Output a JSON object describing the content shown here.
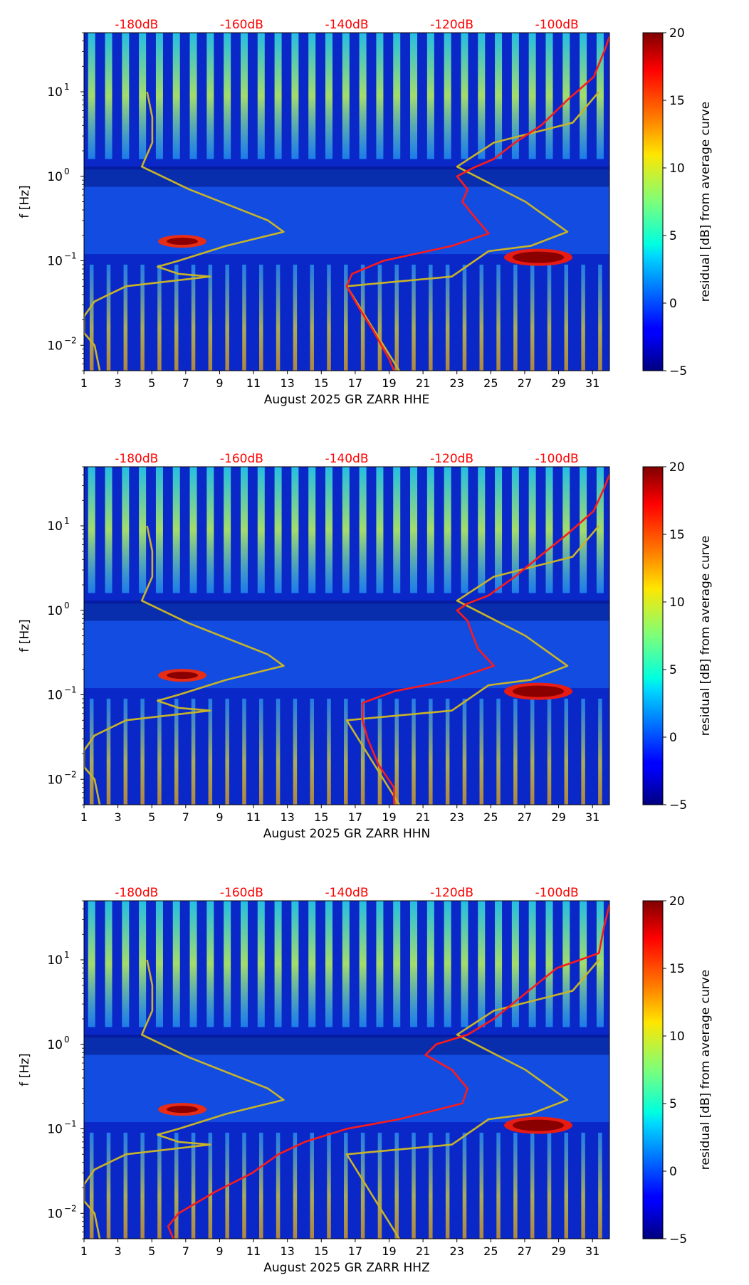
{
  "figure": {
    "xticks": [
      "1",
      "3",
      "5",
      "7",
      "9",
      "11",
      "13",
      "15",
      "17",
      "19",
      "21",
      "23",
      "25",
      "27",
      "29",
      "31"
    ],
    "yticks": [
      {
        "base": "10",
        "exp": "1",
        "value": 10
      },
      {
        "base": "10",
        "exp": "0",
        "value": 1
      },
      {
        "base": "10",
        "exp": "−1",
        "value": 0.1
      },
      {
        "base": "10",
        "exp": "−2",
        "value": 0.01
      }
    ],
    "ylabel": "f [Hz]",
    "db_scale": [
      "-180dB",
      "-160dB",
      "-140dB",
      "-120dB",
      "-100dB"
    ],
    "colorbar": {
      "label": "residual [dB] from average curve",
      "ticks": [
        "20",
        "15",
        "10",
        "5",
        "0",
        "−5"
      ],
      "range": [
        -5,
        20
      ],
      "colormap": "jet"
    },
    "colors": {
      "db_text": "#ff0000",
      "median_curve": "#ff1a1a",
      "reference_curve": "#c8b428"
    }
  },
  "chart_data": [
    {
      "type": "heatmap",
      "xlabel": "August 2025 GR ZARR  HHE",
      "ylabel": "f [Hz]",
      "xlim": [
        1,
        32
      ],
      "ylim": [
        0.005,
        50
      ],
      "yscale": "log",
      "top_axis": {
        "ticks": [
          "-180dB",
          "-160dB",
          "-140dB",
          "-120dB",
          "-100dB"
        ],
        "range_db": [
          -190,
          -90
        ]
      },
      "colorbar": {
        "label": "residual [dB] from average curve",
        "min": -5,
        "max": 20
      },
      "series": [
        {
          "color": "red",
          "points": [
            [
              -90,
              45
            ],
            [
              -91,
              30
            ],
            [
              -93,
              15
            ],
            [
              -98,
              8
            ],
            [
              -103,
              4
            ],
            [
              -108,
              2.5
            ],
            [
              -112,
              1.6
            ],
            [
              -116,
              1.25
            ],
            [
              -119,
              1.0
            ],
            [
              -117,
              0.7
            ],
            [
              -118,
              0.5
            ],
            [
              -116,
              0.35
            ],
            [
              -113,
              0.21
            ],
            [
              -120,
              0.15
            ],
            [
              -133,
              0.1
            ],
            [
              -139,
              0.07
            ],
            [
              -140,
              0.05
            ],
            [
              -138,
              0.03
            ],
            [
              -135,
              0.015
            ],
            [
              -132,
              0.007
            ],
            [
              -131,
              0.005
            ]
          ]
        },
        {
          "color": "olive",
          "points": [
            [
              -178,
              10
            ],
            [
              -177,
              5
            ],
            [
              -177,
              2.5
            ],
            [
              -179,
              1.3
            ],
            [
              -170,
              0.7
            ],
            [
              -155,
              0.3
            ],
            [
              -152,
              0.22
            ],
            [
              -163,
              0.15
            ],
            [
              -172,
              0.1
            ],
            [
              -176,
              0.085
            ],
            [
              -172,
              0.07
            ],
            [
              -166,
              0.065
            ],
            [
              -182,
              0.05
            ],
            [
              -188,
              0.033
            ],
            [
              -190,
              0.022
            ],
            [
              -190,
              0.014
            ],
            [
              -188,
              0.01
            ],
            [
              -187,
              0.005
            ]
          ]
        },
        {
          "color": "olive",
          "points": [
            [
              -92,
              10
            ],
            [
              -97,
              4.3
            ],
            [
              -112,
              2.5
            ],
            [
              -119,
              1.3
            ],
            [
              -106,
              0.5
            ],
            [
              -98,
              0.22
            ],
            [
              -105,
              0.15
            ],
            [
              -113,
              0.13
            ],
            [
              -120,
              0.065
            ],
            [
              -140,
              0.05
            ],
            [
              -130,
              0.005
            ]
          ]
        }
      ]
    },
    {
      "type": "heatmap",
      "xlabel": "August 2025 GR ZARR  HHN",
      "ylabel": "f [Hz]",
      "xlim": [
        1,
        32
      ],
      "ylim": [
        0.005,
        50
      ],
      "yscale": "log",
      "top_axis": {
        "ticks": [
          "-180dB",
          "-160dB",
          "-140dB",
          "-120dB",
          "-100dB"
        ],
        "range_db": [
          -190,
          -90
        ]
      },
      "colorbar": {
        "label": "residual [dB] from average curve",
        "min": -5,
        "max": 20
      },
      "series": [
        {
          "color": "red",
          "points": [
            [
              -90,
              40
            ],
            [
              -91,
              28
            ],
            [
              -93,
              15
            ],
            [
              -98,
              8
            ],
            [
              -103,
              4.5
            ],
            [
              -108,
              2.5
            ],
            [
              -113,
              1.5
            ],
            [
              -117,
              1.2
            ],
            [
              -119,
              1.0
            ],
            [
              -117,
              0.75
            ],
            [
              -116,
              0.5
            ],
            [
              -115,
              0.35
            ],
            [
              -112,
              0.22
            ],
            [
              -120,
              0.15
            ],
            [
              -131,
              0.11
            ],
            [
              -137,
              0.08
            ],
            [
              -137,
              0.05
            ],
            [
              -136,
              0.03
            ],
            [
              -134,
              0.015
            ],
            [
              -131,
              0.008
            ],
            [
              -131,
              0.005
            ]
          ]
        },
        {
          "color": "olive",
          "points": [
            [
              -178,
              10
            ],
            [
              -177,
              5
            ],
            [
              -177,
              2.5
            ],
            [
              -179,
              1.3
            ],
            [
              -170,
              0.7
            ],
            [
              -155,
              0.3
            ],
            [
              -152,
              0.22
            ],
            [
              -163,
              0.15
            ],
            [
              -172,
              0.1
            ],
            [
              -176,
              0.085
            ],
            [
              -172,
              0.07
            ],
            [
              -166,
              0.065
            ],
            [
              -182,
              0.05
            ],
            [
              -188,
              0.033
            ],
            [
              -190,
              0.022
            ],
            [
              -190,
              0.014
            ],
            [
              -188,
              0.01
            ],
            [
              -187,
              0.005
            ]
          ]
        },
        {
          "color": "olive",
          "points": [
            [
              -92,
              10
            ],
            [
              -97,
              4.3
            ],
            [
              -112,
              2.5
            ],
            [
              -119,
              1.3
            ],
            [
              -106,
              0.5
            ],
            [
              -98,
              0.22
            ],
            [
              -105,
              0.15
            ],
            [
              -113,
              0.13
            ],
            [
              -120,
              0.065
            ],
            [
              -140,
              0.05
            ],
            [
              -130,
              0.005
            ]
          ]
        }
      ]
    },
    {
      "type": "heatmap",
      "xlabel": "August 2025 GR ZARR  HHZ",
      "ylabel": "f [Hz]",
      "xlim": [
        1,
        32
      ],
      "ylim": [
        0.005,
        50
      ],
      "yscale": "log",
      "top_axis": {
        "ticks": [
          "-180dB",
          "-160dB",
          "-140dB",
          "-120dB",
          "-100dB"
        ],
        "range_db": [
          -190,
          -90
        ]
      },
      "colorbar": {
        "label": "residual [dB] from average curve",
        "min": -5,
        "max": 20
      },
      "series": [
        {
          "color": "red",
          "points": [
            [
              -90,
              45
            ],
            [
              -91,
              25
            ],
            [
              -92,
              12
            ],
            [
              -100,
              8
            ],
            [
              -106,
              4
            ],
            [
              -112,
              2
            ],
            [
              -117,
              1.3
            ],
            [
              -123,
              1.0
            ],
            [
              -125,
              0.75
            ],
            [
              -120,
              0.5
            ],
            [
              -117,
              0.3
            ],
            [
              -118,
              0.2
            ],
            [
              -130,
              0.13
            ],
            [
              -140,
              0.1
            ],
            [
              -148,
              0.07
            ],
            [
              -153,
              0.05
            ],
            [
              -158,
              0.03
            ],
            [
              -165,
              0.018
            ],
            [
              -172,
              0.01
            ],
            [
              -174,
              0.007
            ],
            [
              -173,
              0.005
            ]
          ]
        },
        {
          "color": "olive",
          "points": [
            [
              -178,
              10
            ],
            [
              -177,
              5
            ],
            [
              -177,
              2.5
            ],
            [
              -179,
              1.3
            ],
            [
              -170,
              0.7
            ],
            [
              -155,
              0.3
            ],
            [
              -152,
              0.22
            ],
            [
              -163,
              0.15
            ],
            [
              -172,
              0.1
            ],
            [
              -176,
              0.085
            ],
            [
              -172,
              0.07
            ],
            [
              -166,
              0.065
            ],
            [
              -182,
              0.05
            ],
            [
              -188,
              0.033
            ],
            [
              -190,
              0.022
            ],
            [
              -190,
              0.014
            ],
            [
              -188,
              0.01
            ],
            [
              -187,
              0.005
            ]
          ]
        },
        {
          "color": "olive",
          "points": [
            [
              -92,
              10
            ],
            [
              -97,
              4.3
            ],
            [
              -112,
              2.5
            ],
            [
              -119,
              1.3
            ],
            [
              -106,
              0.5
            ],
            [
              -98,
              0.22
            ],
            [
              -105,
              0.15
            ],
            [
              -113,
              0.13
            ],
            [
              -120,
              0.065
            ],
            [
              -140,
              0.05
            ],
            [
              -130,
              0.005
            ]
          ]
        }
      ]
    }
  ]
}
